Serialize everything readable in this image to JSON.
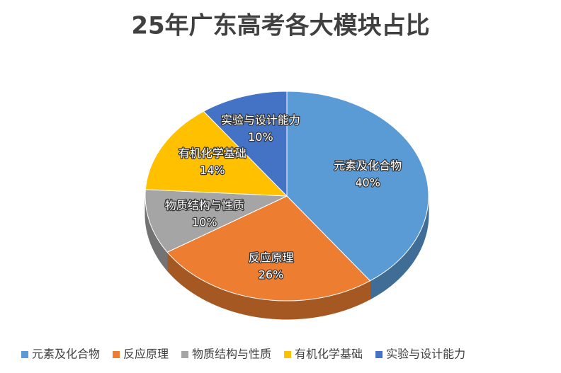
{
  "chart_data": {
    "type": "pie",
    "title": "25年广东高考各大模块占比",
    "categories": [
      "元素及化合物",
      "反应原理",
      "物质结构与性质",
      "有机化学基础",
      "实验与设计能力"
    ],
    "values": [
      40,
      26,
      10,
      14,
      10
    ],
    "value_labels": [
      "40%",
      "26%",
      "10%",
      "14%",
      "10%"
    ],
    "colors": [
      "#5b9bd5",
      "#ed7d31",
      "#a5a5a5",
      "#ffc000",
      "#4472c4"
    ],
    "legend": "bottom"
  }
}
